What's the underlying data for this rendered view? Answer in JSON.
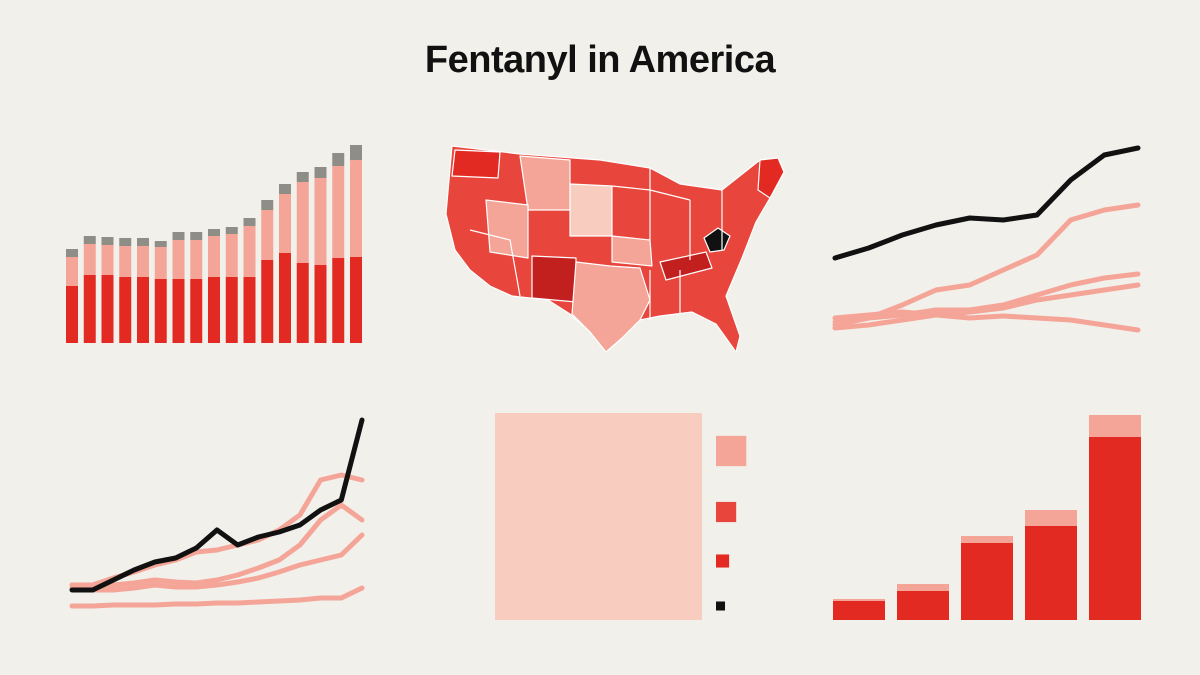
{
  "title": "Fentanyl in America",
  "chart_data": [
    {
      "type": "stacked_bar",
      "categories": [
        null,
        null,
        null,
        null,
        null,
        null,
        null,
        null,
        null,
        null,
        null,
        null,
        null,
        null,
        null,
        null,
        null
      ],
      "series": [
        {
          "color": "#e32a22",
          "values": [
            57,
            68,
            68,
            66,
            66,
            64,
            64,
            64,
            66,
            66,
            66,
            83,
            90,
            80,
            78,
            85,
            86
          ]
        },
        {
          "color": "#f4a597",
          "values": [
            29,
            31,
            30,
            31,
            31,
            32,
            39,
            39,
            41,
            43,
            51,
            50,
            59,
            81,
            87,
            92,
            97
          ]
        },
        {
          "color": "#8e8e86",
          "values": [
            8,
            8,
            8,
            8,
            8,
            6,
            8,
            8,
            7,
            7,
            8,
            10,
            10,
            10,
            11,
            13,
            15
          ]
        }
      ],
      "ylim": [
        0,
        200
      ]
    },
    {
      "type": "line",
      "categories": [
        null,
        null,
        null,
        null,
        null,
        null,
        null,
        null,
        null,
        null
      ],
      "series": [
        {
          "color": "#f4a597",
          "values": [
            27,
            30,
            33,
            30,
            27,
            29,
            27,
            25,
            20,
            15
          ]
        },
        {
          "color": "#f4a597",
          "values": [
            17,
            20,
            25,
            30,
            33,
            37,
            45,
            50,
            55,
            60
          ]
        },
        {
          "color": "#f4a597",
          "values": [
            20,
            27,
            30,
            35,
            35,
            40,
            50,
            60,
            67,
            71
          ]
        },
        {
          "color": "#f4a597",
          "values": [
            23,
            27,
            40,
            55,
            60,
            75,
            90,
            125,
            135,
            140
          ]
        },
        {
          "color": "#111111",
          "values": [
            87,
            97,
            110,
            120,
            127,
            125,
            130,
            165,
            190,
            197
          ]
        }
      ],
      "ylim": [
        0,
        200
      ]
    },
    {
      "type": "line",
      "categories": [
        null,
        null,
        null,
        null,
        null,
        null,
        null,
        null,
        null,
        null,
        null,
        null,
        null,
        null,
        null
      ],
      "series": [
        {
          "color": "#f4a597",
          "values": [
            4,
            4,
            5,
            5,
            5,
            6,
            6,
            7,
            7,
            8,
            9,
            10,
            12,
            12,
            22
          ]
        },
        {
          "color": "#f4a597",
          "values": [
            22,
            20,
            20,
            22,
            25,
            23,
            23,
            25,
            28,
            32,
            38,
            45,
            50,
            55,
            75
          ]
        },
        {
          "color": "#f4a597",
          "values": [
            25,
            22,
            25,
            27,
            30,
            28,
            27,
            30,
            35,
            42,
            50,
            65,
            90,
            105,
            90
          ]
        },
        {
          "color": "#f4a597",
          "values": [
            25,
            25,
            32,
            38,
            45,
            50,
            58,
            60,
            65,
            70,
            80,
            95,
            130,
            135,
            130
          ]
        },
        {
          "color": "#111111",
          "values": [
            20,
            20,
            30,
            40,
            48,
            52,
            62,
            80,
            65,
            73,
            78,
            85,
            100,
            110,
            190
          ]
        }
      ],
      "ylim": [
        0,
        200
      ]
    },
    {
      "type": "square",
      "values": [
        100,
        2.14,
        0.95,
        0.4,
        0.19
      ],
      "colors": [
        "#f8cdc0",
        "#f4a597",
        "#e8453c",
        "#e32a22",
        "#111111"
      ]
    },
    {
      "type": "stacked_bar",
      "categories": [
        null,
        null,
        null,
        null,
        null
      ],
      "series": [
        {
          "color": "#e32a22",
          "values": [
            19,
            29,
            77,
            94,
            183
          ]
        },
        {
          "color": "#f4a597",
          "values": [
            2,
            7,
            7,
            16,
            22
          ]
        }
      ],
      "ylim": [
        0,
        210
      ]
    }
  ]
}
